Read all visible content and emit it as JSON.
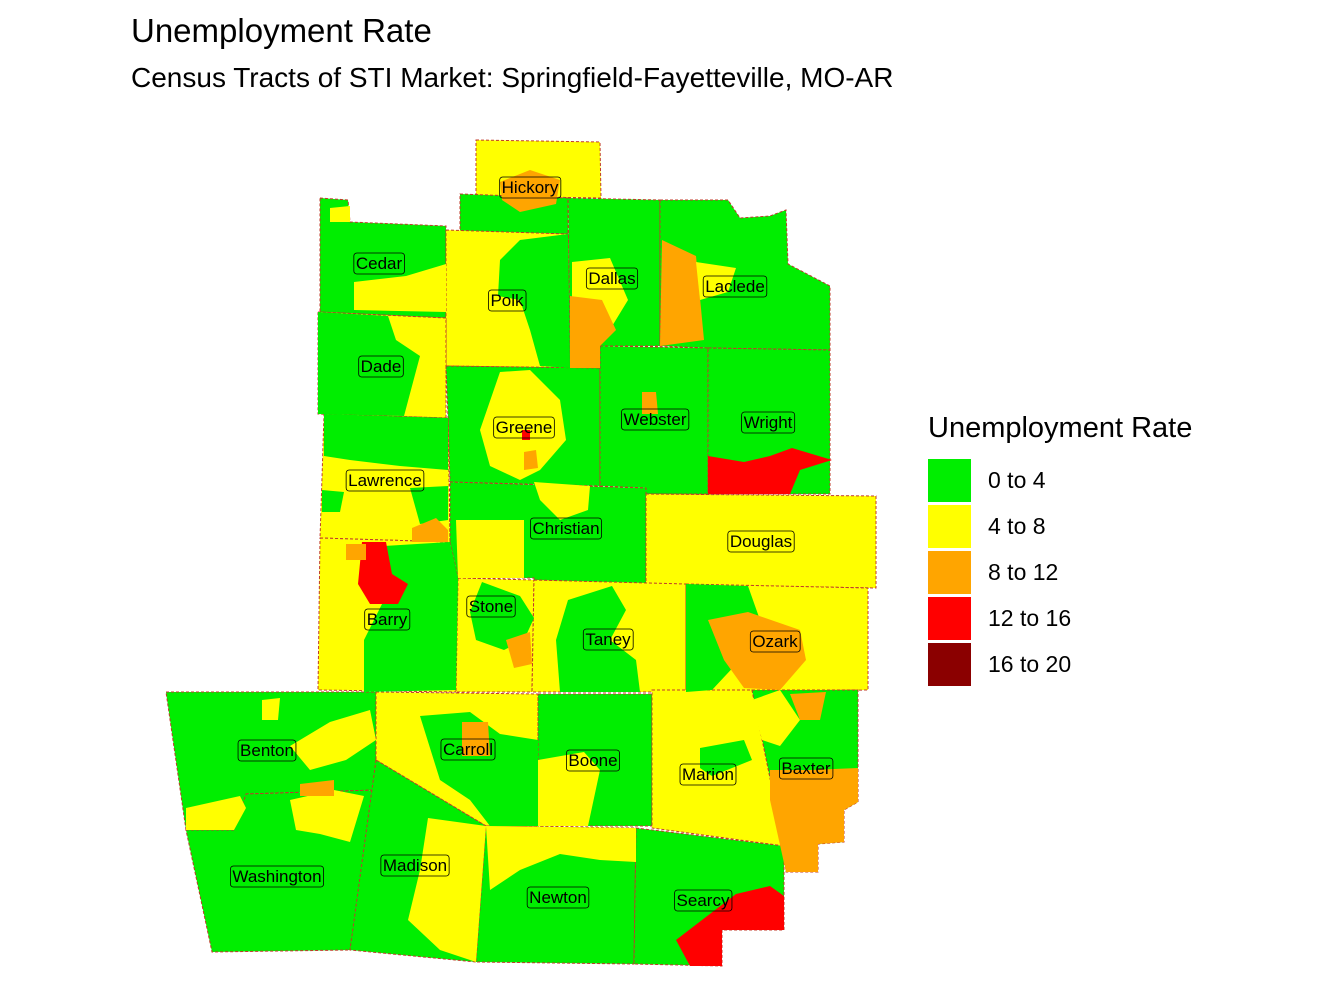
{
  "title": "Unemployment Rate",
  "subtitle": "Census Tracts of STI Market: Springfield-Fayetteville, MO-AR",
  "legend": {
    "title": "Unemployment Rate",
    "items": [
      {
        "label": "0 to 4",
        "color": "#00ee00"
      },
      {
        "label": "4 to 8",
        "color": "#ffff00"
      },
      {
        "label": "8 to 12",
        "color": "#ffa500"
      },
      {
        "label": "12 to 16",
        "color": "#ff0000"
      },
      {
        "label": "16 to 20",
        "color": "#8b0000"
      }
    ]
  },
  "colors": {
    "green": "#00ee00",
    "yellow": "#ffff00",
    "orange": "#ffa500",
    "red": "#ff0000",
    "darkred": "#8b0000",
    "boundary": "#c0392b"
  },
  "counties": [
    {
      "name": "Hickory"
    },
    {
      "name": "Cedar"
    },
    {
      "name": "Polk"
    },
    {
      "name": "Dallas"
    },
    {
      "name": "Laclede"
    },
    {
      "name": "Dade"
    },
    {
      "name": "Greene"
    },
    {
      "name": "Webster"
    },
    {
      "name": "Wright"
    },
    {
      "name": "Lawrence"
    },
    {
      "name": "Christian"
    },
    {
      "name": "Douglas"
    },
    {
      "name": "Barry"
    },
    {
      "name": "Stone"
    },
    {
      "name": "Taney"
    },
    {
      "name": "Ozark"
    },
    {
      "name": "Benton"
    },
    {
      "name": "Carroll"
    },
    {
      "name": "Boone"
    },
    {
      "name": "Marion"
    },
    {
      "name": "Baxter"
    },
    {
      "name": "Washington"
    },
    {
      "name": "Madison"
    },
    {
      "name": "Newton"
    },
    {
      "name": "Searcy"
    }
  ]
}
